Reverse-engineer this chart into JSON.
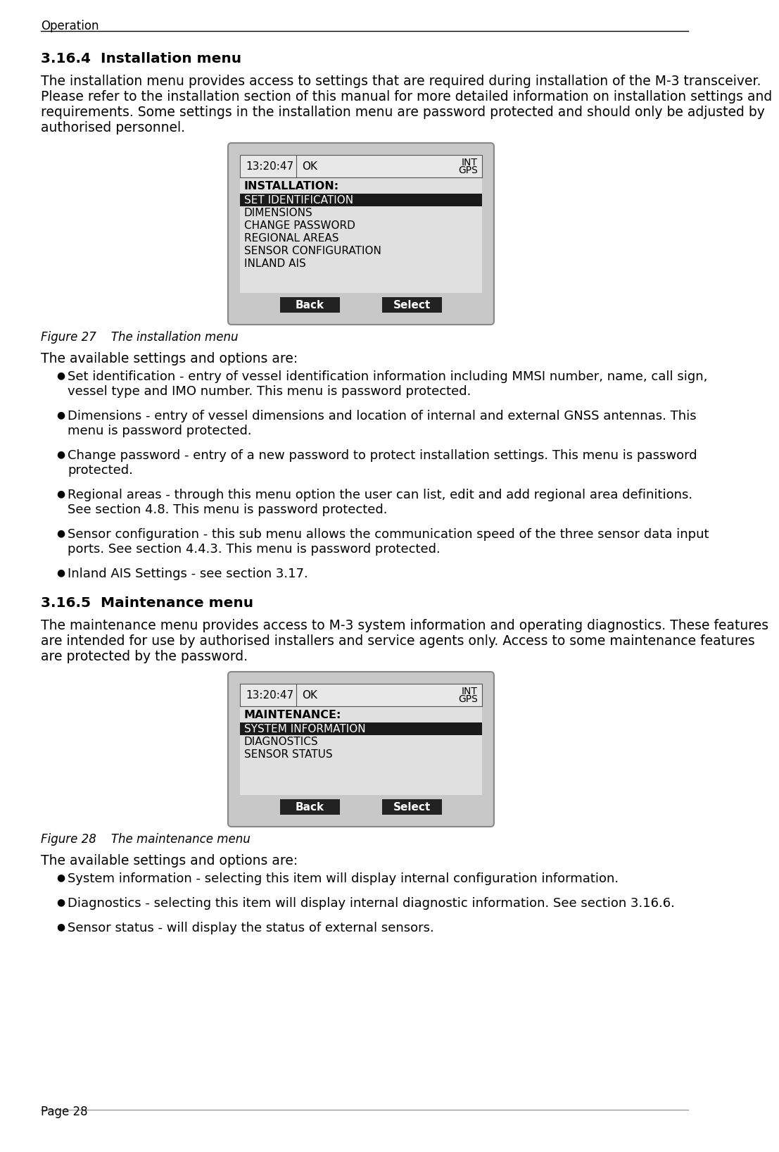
{
  "page_header": "Operation",
  "section1_title": "3.16.4  Installation menu",
  "section1_para1": "The installation menu provides access to settings that are required during installation of the M-3 transceiver.",
  "section1_para2": "Please refer to the installation section of this manual for more detailed information on installation settings and",
  "section1_para3": "requirements. Some settings in the installation menu are password protected and should only be adjusted by",
  "section1_para4": "authorised personnel.",
  "fig1_label": "Figure 27    The installation menu",
  "menu1": {
    "status_bar": {
      "time": "13:20:47",
      "status": "OK",
      "right1": "INT",
      "right2": "GPS"
    },
    "title": "INSTALLATION:",
    "items": [
      "SET IDENTIFICATION",
      "DIMENSIONS",
      "CHANGE PASSWORD",
      "REGIONAL AREAS",
      "SENSOR CONFIGURATION",
      "INLAND AIS"
    ],
    "highlighted": 0,
    "buttons": [
      "Back",
      "Select"
    ]
  },
  "avail_text": "The available settings and options are:",
  "section1_bullets": [
    [
      "Set identification - entry of vessel identification information including MMSI number, name, call sign,",
      "vessel type and IMO number. This menu is password protected."
    ],
    [
      "Dimensions - entry of vessel dimensions and location of internal and external GNSS antennas. This",
      "menu is password protected."
    ],
    [
      "Change password - entry of a new password to protect installation settings. This menu is password",
      "protected."
    ],
    [
      "Regional areas - through this menu option the user can list, edit and add regional area definitions.",
      "See section 4.8. This menu is password protected."
    ],
    [
      "Sensor configuration - this sub menu allows the communication speed of the three sensor data input",
      "ports. See section 4.4.3. This menu is password protected."
    ],
    [
      "Inland AIS Settings - see section 3.17."
    ]
  ],
  "section2_title": "3.16.5  Maintenance menu",
  "section2_para1": "The maintenance menu provides access to M-3 system information and operating diagnostics. These features",
  "section2_para2": "are intended for use by authorised installers and service agents only. Access to some maintenance features",
  "section2_para3": "are protected by the password.",
  "fig2_label": "Figure 28    The maintenance menu",
  "menu2": {
    "status_bar": {
      "time": "13:20:47",
      "status": "OK",
      "right1": "INT",
      "right2": "GPS"
    },
    "title": "MAINTENANCE:",
    "items": [
      "SYSTEM INFORMATION",
      "DIAGNOSTICS",
      "SENSOR STATUS"
    ],
    "highlighted": 0,
    "buttons": [
      "Back",
      "Select"
    ]
  },
  "section2_bullets": [
    [
      "System information - selecting this item will display internal configuration information. "
    ],
    [
      "Diagnostics - selecting this item will display internal diagnostic information. See section 3.16.6. "
    ],
    [
      "Sensor status - will display the status of external sensors."
    ]
  ],
  "page_footer": "Page 28",
  "bg_color": "#ffffff",
  "text_color": "#000000",
  "menu_outer_bg": "#cccccc",
  "menu_inner_bg": "#e8e8e8",
  "menu_content_bg": "#e0e0e0",
  "menu_highlight_bg": "#1a1a1a",
  "menu_text_normal": "#000000",
  "menu_text_highlight": "#ffffff",
  "button_color": "#222222",
  "button_text": "#ffffff",
  "header_line_color": "#000000",
  "footer_line_color": "#888888",
  "body_font_size": 13.5,
  "title_font_size": 14.5,
  "bullet_font_size": 13.0,
  "menu_font_size": 11.0,
  "menu_title_font_size": 11.5,
  "caption_font_size": 12.0,
  "header_font_size": 12.0,
  "footer_font_size": 12.0
}
